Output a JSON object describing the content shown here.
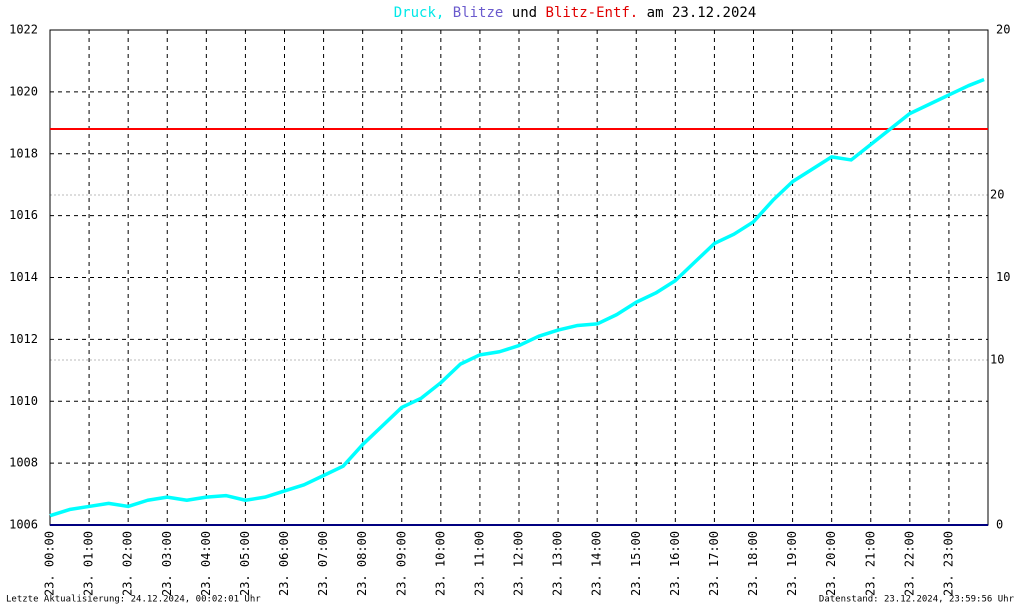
{
  "chart_data": {
    "type": "line",
    "title_comma": ",",
    "title_and": "und",
    "title_date": "am 23.12.2024",
    "footer_left": "Letzte Aktualisierung: 24.12.2024, 00:02:01 Uhr",
    "footer_right": "Datenstand: 23.12.2024, 23:59:56 Uhr",
    "xlim": [
      0,
      24
    ],
    "xticks": [
      {
        "value": 0,
        "label": "23. 00:00"
      },
      {
        "value": 1,
        "label": "23. 01:00"
      },
      {
        "value": 2,
        "label": "23. 02:00"
      },
      {
        "value": 3,
        "label": "23. 03:00"
      },
      {
        "value": 4,
        "label": "23. 04:00"
      },
      {
        "value": 5,
        "label": "23. 05:00"
      },
      {
        "value": 6,
        "label": "23. 06:00"
      },
      {
        "value": 7,
        "label": "23. 07:00"
      },
      {
        "value": 8,
        "label": "23. 08:00"
      },
      {
        "value": 9,
        "label": "23. 09:00"
      },
      {
        "value": 10,
        "label": "23. 10:00"
      },
      {
        "value": 11,
        "label": "23. 11:00"
      },
      {
        "value": 12,
        "label": "23. 12:00"
      },
      {
        "value": 13,
        "label": "23. 13:00"
      },
      {
        "value": 14,
        "label": "23. 14:00"
      },
      {
        "value": 15,
        "label": "23. 15:00"
      },
      {
        "value": 16,
        "label": "23. 16:00"
      },
      {
        "value": 17,
        "label": "23. 17:00"
      },
      {
        "value": 18,
        "label": "23. 18:00"
      },
      {
        "value": 19,
        "label": "23. 19:00"
      },
      {
        "value": 20,
        "label": "23. 20:00"
      },
      {
        "value": 21,
        "label": "23. 21:00"
      },
      {
        "value": 22,
        "label": "23. 22:00"
      },
      {
        "value": 23,
        "label": "23. 23:00"
      }
    ],
    "ylim": [
      1006,
      1022
    ],
    "yticks": [
      1006,
      1008,
      1010,
      1012,
      1014,
      1016,
      1018,
      1020,
      1022
    ],
    "y2lim": [
      0,
      20
    ],
    "y2ticks": [
      0,
      10,
      20
    ],
    "y2color": "#000000",
    "y3lim": [
      0,
      30
    ],
    "y3ticks": [
      10,
      20
    ],
    "y3color": "#ff0000",
    "grid": true,
    "series": [
      {
        "name": "Druck",
        "color": "#00ffff",
        "x": [
          0,
          0.5,
          1,
          1.5,
          2,
          2.5,
          3,
          3.5,
          4,
          4.5,
          5,
          5.5,
          6,
          6.5,
          7,
          7.5,
          8,
          8.5,
          9,
          9.5,
          10,
          10.5,
          11,
          11.5,
          12,
          12.5,
          13,
          13.5,
          14,
          14.5,
          15,
          15.5,
          16,
          16.5,
          17,
          17.5,
          18,
          18.5,
          19,
          19.5,
          20,
          20.5,
          21,
          21.5,
          22,
          22.5,
          23,
          23.5,
          23.9
        ],
        "values": [
          1006.3,
          1006.5,
          1006.6,
          1006.7,
          1006.6,
          1006.8,
          1006.9,
          1006.8,
          1006.9,
          1006.95,
          1006.8,
          1006.9,
          1007.1,
          1007.3,
          1007.6,
          1007.9,
          1008.6,
          1009.2,
          1009.8,
          1010.1,
          1010.6,
          1011.2,
          1011.5,
          1011.6,
          1011.8,
          1012.1,
          1012.3,
          1012.45,
          1012.5,
          1012.8,
          1013.2,
          1013.5,
          1013.9,
          1014.5,
          1015.1,
          1015.4,
          1015.8,
          1016.5,
          1017.1,
          1017.5,
          1017.9,
          1017.8,
          1018.3,
          1018.8,
          1019.3,
          1019.6,
          1019.9,
          1020.2,
          1020.4
        ]
      },
      {
        "name": "Blitze",
        "color": "#000080",
        "axis": "y2",
        "x": [
          0,
          24
        ],
        "values": [
          0,
          0
        ]
      },
      {
        "name": "Blitz-Entf.",
        "color": "#ff0000",
        "axis": "y3",
        "x": [
          0,
          24
        ],
        "values": [
          24,
          24
        ]
      }
    ]
  }
}
